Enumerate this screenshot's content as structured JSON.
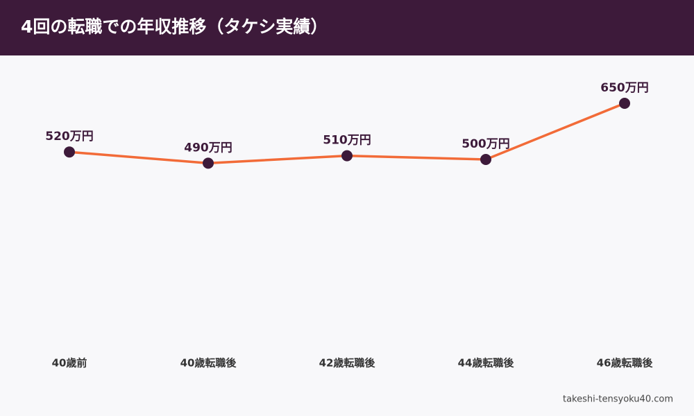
{
  "chart_data": {
    "type": "line",
    "title": "4回の転職での年収推移（タケシ実績）",
    "categories": [
      "40歳前",
      "40歳転職後",
      "42歳転職後",
      "44歳転職後",
      "46歳転職後"
    ],
    "values": [
      520,
      490,
      510,
      500,
      650
    ],
    "value_labels": [
      "520万円",
      "490万円",
      "510万円",
      "500万円",
      "650万円"
    ],
    "color": "#f26b38",
    "marker_color": "#3d1a3a",
    "ylim": [
      0,
      750
    ],
    "grid": false,
    "source": "takeshi-tensyoku40.com"
  }
}
